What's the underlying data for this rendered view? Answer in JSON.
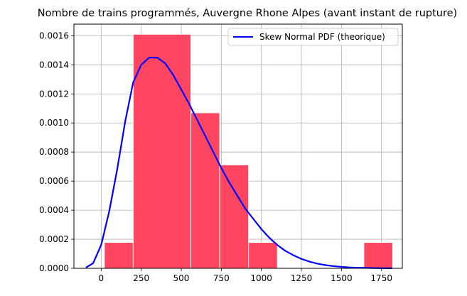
{
  "chart_data": {
    "type": "bar",
    "title": "Nombre de trains programmés, Auvergne Rhone Alpes (avant instant de rupture)",
    "xlabel": "",
    "ylabel": "",
    "xlim": [
      -170,
      1880
    ],
    "ylim": [
      0,
      0.00168
    ],
    "x_ticks": [
      0,
      250,
      500,
      750,
      1000,
      1250,
      1500,
      1750
    ],
    "x_tick_labels": [
      "0",
      "250",
      "500",
      "750",
      "1000",
      "1250",
      "1500",
      "1750"
    ],
    "y_ticks": [
      0,
      0.0002,
      0.0004,
      0.0006,
      0.0008,
      0.001,
      0.0012,
      0.0014,
      0.0016
    ],
    "y_tick_labels": [
      "0.0000",
      "0.0002",
      "0.0004",
      "0.0006",
      "0.0008",
      "0.0010",
      "0.0012",
      "0.0014",
      "0.0016"
    ],
    "grid": true,
    "legend_position": "top-right",
    "bins": [
      {
        "x0": 20,
        "x1": 200,
        "value": 0.000178
      },
      {
        "x0": 200,
        "x1": 560,
        "value": 0.00161
      },
      {
        "x0": 560,
        "x1": 740,
        "value": 0.00107
      },
      {
        "x0": 740,
        "x1": 920,
        "value": 0.000712
      },
      {
        "x0": 920,
        "x1": 1100,
        "value": 0.000178
      },
      {
        "x0": 1100,
        "x1": 1640,
        "value": 0
      },
      {
        "x0": 1640,
        "x1": 1820,
        "value": 0.000178
      }
    ],
    "bar_color": "#ff4560",
    "series": [
      {
        "name": "Skew Normal PDF (theorique)",
        "color": "#0000ff",
        "x": [
          -95,
          -50,
          0,
          50,
          100,
          150,
          200,
          250,
          300,
          350,
          400,
          450,
          500,
          550,
          600,
          650,
          700,
          750,
          800,
          850,
          900,
          950,
          1000,
          1050,
          1100,
          1150,
          1200,
          1250,
          1300,
          1350,
          1400,
          1450,
          1500,
          1550,
          1600,
          1650,
          1700,
          1750,
          1815
        ],
        "y": [
          5e-06,
          3.5e-05,
          0.00016,
          0.00039,
          0.00068,
          0.00101,
          0.00128,
          0.0014,
          0.00145,
          0.00145,
          0.00141,
          0.00133,
          0.00123,
          0.00113,
          0.00102,
          0.00091,
          0.0008,
          0.00069,
          0.00059,
          0.0005,
          0.00041,
          0.00034,
          0.00027,
          0.00021,
          0.00016,
          0.00012,
          9e-05,
          6.5e-05,
          4.6e-05,
          3.2e-05,
          2.2e-05,
          1.5e-05,
          1e-05,
          6e-06,
          4e-06,
          3e-06,
          2e-06,
          1e-06,
          5e-07
        ]
      }
    ]
  }
}
